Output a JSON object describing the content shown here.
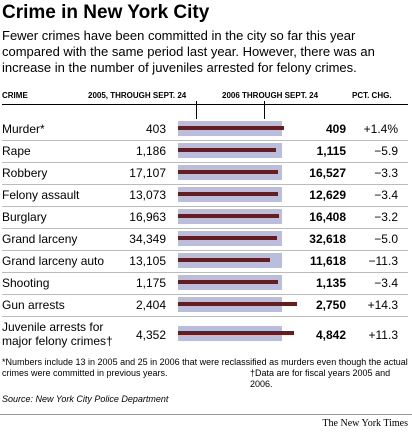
{
  "chart_data": {
    "type": "bar",
    "title": "Crime in New York City",
    "subtitle": "Fewer crimes have been committed in the city so far this year compared with the same period last year. However, there was an increase in the number of juveniles arrested for felony crimes.",
    "category_header": "CRIME",
    "categories": [
      "Murder*",
      "Rape",
      "Robbery",
      "Felony assault",
      "Burglary",
      "Grand larceny",
      "Grand larceny auto",
      "Shooting",
      "Gun arrests",
      "Juvenile arrests for major felony crimes†"
    ],
    "series": [
      {
        "name": "2005, THROUGH SEPT. 24",
        "color": "#b9bedf",
        "values": [
          403,
          1186,
          17107,
          13073,
          16963,
          34349,
          13105,
          1175,
          2404,
          4352
        ],
        "value_labels": [
          "403",
          "1,186",
          "17,107",
          "13,073",
          "16,963",
          "34,349",
          "13,105",
          "1,175",
          "2,404",
          "4,352"
        ]
      },
      {
        "name": "2006 THROUGH SEPT. 24",
        "color": "#6a1c1c",
        "values": [
          409,
          1115,
          16527,
          12629,
          16408,
          32618,
          11618,
          1135,
          2750,
          4842
        ],
        "value_labels": [
          "409",
          "1,115",
          "16,527",
          "12,629",
          "16,408",
          "32,618",
          "11,618",
          "1,135",
          "2,750",
          "4,842"
        ]
      }
    ],
    "pct_change": {
      "name": "PCT. CHG.",
      "values": [
        1.4,
        -5.9,
        -3.3,
        -3.4,
        -3.2,
        -5.0,
        -11.3,
        -3.4,
        14.3,
        11.3
      ],
      "value_labels": [
        "+1.4%",
        "−5.9",
        "−3.3",
        "−3.4",
        "−3.2",
        "−5.0",
        "−11.3",
        "−3.4",
        "+14.3",
        "+11.3"
      ]
    },
    "notes": [
      "*Numbers include 13 in 2005 and 25 in 2006 that were reclassified as murders even though the actual crimes were committed in previous years.",
      "†Data are for fiscal years 2005 and 2006."
    ],
    "source": "Source: New York City Police Department",
    "credit": "The New York Times"
  }
}
